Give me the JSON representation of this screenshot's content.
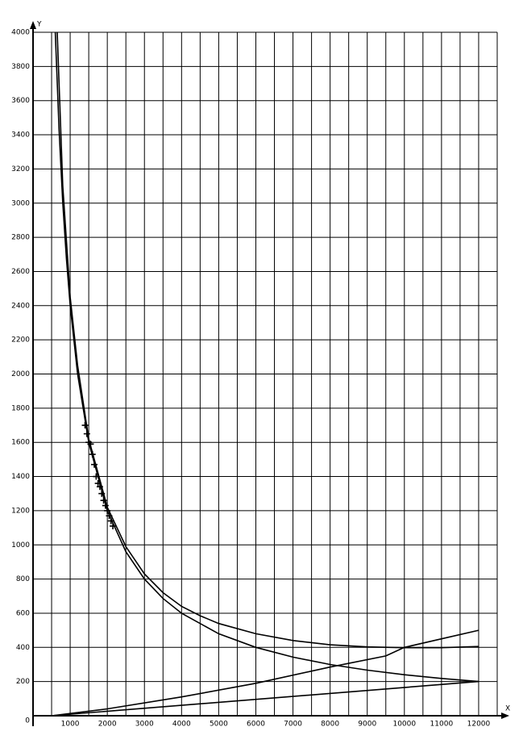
{
  "chart_data": {
    "type": "line",
    "x_label": "X",
    "y_label": "Y",
    "xlim": [
      0,
      12500
    ],
    "ylim": [
      0,
      4000
    ],
    "xticks": [
      0,
      1000,
      2000,
      3000,
      4000,
      5000,
      6000,
      7000,
      8000,
      9000,
      10000,
      11000,
      12000
    ],
    "xminor": [
      500,
      1500,
      2500,
      3500,
      4500,
      5500,
      6500,
      7500,
      8500,
      9500,
      10500,
      11500,
      12500
    ],
    "yticks": [
      0,
      200,
      400,
      600,
      800,
      1000,
      1200,
      1400,
      1600,
      1800,
      2000,
      2200,
      2400,
      2600,
      2800,
      3000,
      3200,
      3400,
      3600,
      3800,
      4000
    ],
    "grid": true,
    "series": [
      {
        "type": "line",
        "color": "#000000",
        "x": [
          600,
          700,
          800,
          900,
          1000,
          1200,
          1500,
          2000,
          2500,
          3000,
          3500,
          4000,
          5000,
          6000,
          7000,
          8000,
          9000,
          10000,
          11000,
          12000
        ],
        "values": [
          4000,
          3430,
          3000,
          2670,
          2400,
          2000,
          1600,
          1200,
          960,
          800,
          686,
          600,
          480,
          400,
          343,
          300,
          267,
          240,
          218,
          200
        ]
      },
      {
        "type": "line",
        "color": "#000000",
        "x": [
          650,
          800,
          1000,
          1200,
          1500,
          2000,
          2500,
          3000,
          3500,
          4000,
          4500,
          5000,
          6000,
          7000,
          8000,
          9000,
          10000,
          11000,
          12000
        ],
        "values": [
          4000,
          3100,
          2450,
          2050,
          1620,
          1220,
          990,
          830,
          720,
          640,
          585,
          540,
          480,
          440,
          415,
          403,
          398,
          398,
          405
        ]
      },
      {
        "type": "line",
        "color": "#000000",
        "x": [
          500,
          2000,
          4000,
          6000,
          8000,
          9500,
          10000,
          11000,
          12000
        ],
        "values": [
          0,
          40,
          110,
          190,
          285,
          350,
          400,
          450,
          500
        ]
      },
      {
        "type": "line",
        "color": "#000000",
        "x": [
          500,
          12000
        ],
        "values": [
          0,
          200
        ]
      },
      {
        "type": "scatter",
        "color": "#000000",
        "x": [
          1400,
          1450,
          1500,
          1550,
          1600,
          1650,
          1700,
          1750,
          1800,
          1850,
          1900,
          1950,
          2000,
          2050,
          2100,
          2150
        ],
        "values": [
          1700,
          1650,
          1600,
          1590,
          1530,
          1470,
          1400,
          1360,
          1340,
          1300,
          1260,
          1230,
          1200,
          1170,
          1140,
          1110
        ]
      }
    ]
  }
}
